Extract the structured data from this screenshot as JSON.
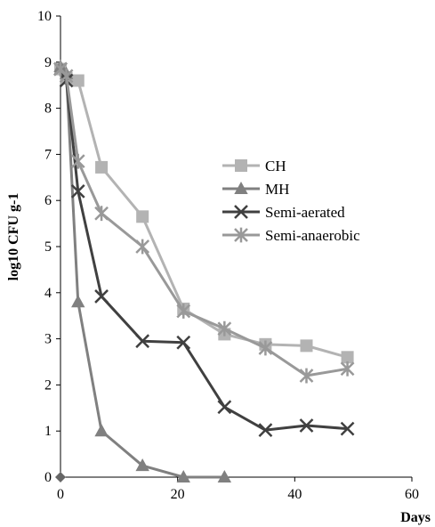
{
  "chart_data": {
    "type": "line",
    "title": "",
    "xlabel": "Days",
    "ylabel": "log10 CFU g-1",
    "xlim": [
      0,
      60
    ],
    "ylim": [
      0,
      10
    ],
    "xticks": [
      0,
      20,
      40,
      60
    ],
    "yticks": [
      0,
      1,
      2,
      3,
      4,
      5,
      6,
      7,
      8,
      9,
      10
    ],
    "grid": false,
    "legend_position": "center-right",
    "series": [
      {
        "name": "CH",
        "color": "#b3b3b3",
        "marker": "square",
        "x": [
          0,
          1,
          3,
          7,
          14,
          21,
          28,
          35,
          42,
          49
        ],
        "y": [
          8.85,
          8.65,
          8.6,
          6.72,
          5.65,
          3.65,
          3.1,
          2.88,
          2.85,
          2.6
        ]
      },
      {
        "name": "MH",
        "color": "#808080",
        "marker": "triangle",
        "x": [
          0,
          1,
          3,
          7,
          14,
          21,
          28
        ],
        "y": [
          8.9,
          8.75,
          3.8,
          1.0,
          0.25,
          0.0,
          0.0
        ]
      },
      {
        "name": "Semi-aerated",
        "color": "#404040",
        "marker": "x",
        "x": [
          0,
          1,
          3,
          7,
          14,
          21,
          28,
          35,
          42,
          49
        ],
        "y": [
          8.85,
          8.6,
          6.2,
          3.92,
          2.95,
          2.92,
          1.52,
          1.02,
          1.12,
          1.05
        ]
      },
      {
        "name": "Semi-anaerobic",
        "color": "#999999",
        "marker": "star",
        "x": [
          0,
          1,
          3,
          7,
          14,
          21,
          28,
          35,
          42,
          49
        ],
        "y": [
          8.85,
          8.7,
          6.85,
          5.72,
          5.0,
          3.6,
          3.22,
          2.8,
          2.2,
          2.35
        ]
      }
    ],
    "extra_points": [
      {
        "x": 0,
        "y": 0,
        "marker": "diamond",
        "color": "#666666"
      }
    ]
  }
}
